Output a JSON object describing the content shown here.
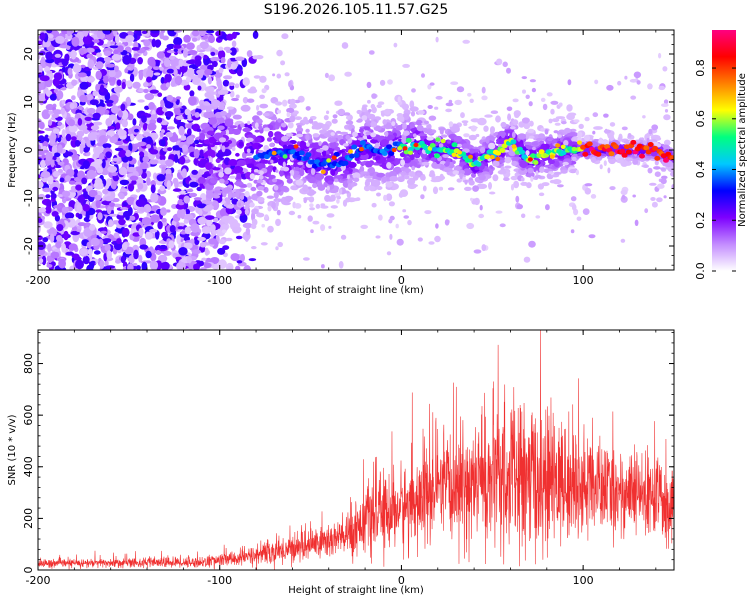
{
  "title": "S196.2026.105.11.57.G25",
  "chart_data": [
    {
      "type": "heatmap",
      "title": "S196.2026.105.11.57.G25",
      "xlabel": "Height of straight line (km)",
      "ylabel": "Frequency (Hz)",
      "xlim": [
        -200,
        150
      ],
      "ylim": [
        -25,
        25
      ],
      "x_ticks": [
        -200,
        -100,
        0,
        100
      ],
      "y_ticks": [
        -20,
        -10,
        0,
        10,
        20
      ],
      "colorbar": {
        "label": "Normalized spectral amplitude",
        "range": [
          0,
          0.95
        ],
        "ticks": [
          0,
          0.2,
          0.4,
          0.6,
          0.8
        ],
        "tick_labels": [
          "0.0",
          "0.2",
          "0.4",
          "0.6",
          "0.8"
        ],
        "colormap": [
          "#ffffff",
          "#c38cff",
          "#7d00ff",
          "#0000ff",
          "#00c8ff",
          "#00ff80",
          "#ffff00",
          "#ff8000",
          "#ff0000",
          "#ff0080"
        ]
      },
      "ridge_profile": [
        {
          "x": -80,
          "y": -1
        },
        {
          "x": -70,
          "y": -1
        },
        {
          "x": -60,
          "y": 0
        },
        {
          "x": -50,
          "y": -2
        },
        {
          "x": -40,
          "y": -3
        },
        {
          "x": -30,
          "y": -2
        },
        {
          "x": -20,
          "y": 1
        },
        {
          "x": -10,
          "y": -1
        },
        {
          "x": 0,
          "y": 1
        },
        {
          "x": 10,
          "y": 1
        },
        {
          "x": 20,
          "y": 0
        },
        {
          "x": 30,
          "y": 0
        },
        {
          "x": 40,
          "y": -3
        },
        {
          "x": 50,
          "y": -1
        },
        {
          "x": 60,
          "y": 2
        },
        {
          "x": 70,
          "y": -2
        },
        {
          "x": 80,
          "y": -1
        },
        {
          "x": 90,
          "y": 0
        },
        {
          "x": 100,
          "y": 0
        },
        {
          "x": 120,
          "y": 0
        },
        {
          "x": 140,
          "y": 0
        },
        {
          "x": 150,
          "y": -2
        }
      ]
    },
    {
      "type": "line",
      "xlabel": "Height of straight line (km)",
      "ylabel": "SNR (10 * v/v)",
      "xlim": [
        -200,
        150
      ],
      "ylim": [
        0,
        930
      ],
      "x_ticks": [
        -200,
        -100,
        0,
        100
      ],
      "y_ticks": [
        0,
        200,
        400,
        600,
        800
      ],
      "line_color": "#f03030",
      "envelope": [
        {
          "x": -200,
          "mean": 25,
          "spread": 15
        },
        {
          "x": -150,
          "mean": 28,
          "spread": 18
        },
        {
          "x": -110,
          "mean": 30,
          "spread": 20
        },
        {
          "x": -90,
          "mean": 45,
          "spread": 30
        },
        {
          "x": -70,
          "mean": 70,
          "spread": 45
        },
        {
          "x": -50,
          "mean": 100,
          "spread": 60
        },
        {
          "x": -30,
          "mean": 130,
          "spread": 80
        },
        {
          "x": -20,
          "mean": 200,
          "spread": 120
        },
        {
          "x": 0,
          "mean": 240,
          "spread": 150
        },
        {
          "x": 20,
          "mean": 300,
          "spread": 180
        },
        {
          "x": 40,
          "mean": 340,
          "spread": 220
        },
        {
          "x": 60,
          "mean": 360,
          "spread": 280
        },
        {
          "x": 80,
          "mean": 340,
          "spread": 250
        },
        {
          "x": 100,
          "mean": 330,
          "spread": 180
        },
        {
          "x": 120,
          "mean": 300,
          "spread": 150
        },
        {
          "x": 150,
          "mean": 270,
          "spread": 150
        }
      ]
    }
  ]
}
